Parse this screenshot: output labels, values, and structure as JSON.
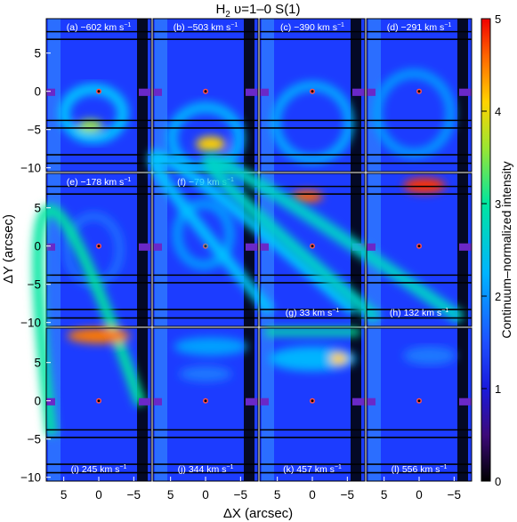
{
  "title_main": "H",
  "title_sub": "2",
  "title_rest": " υ=1–0 S(1)",
  "chart_data": {
    "type": "heatmap",
    "title": "H2 υ=1–0 S(1)",
    "xlabel": "ΔX (arcsec)",
    "ylabel": "ΔY (arcsec)",
    "xlim": [
      7.5,
      -7.5
    ],
    "ylim": [
      -10.5,
      9.5
    ],
    "xticks": [
      5,
      0,
      -5
    ],
    "yticks": [
      5,
      0,
      -5,
      -10
    ],
    "colorbar": {
      "label": "Continuum–normalized intensity",
      "range": [
        0,
        5
      ],
      "ticks": [
        0,
        1,
        2,
        3,
        4,
        5
      ]
    },
    "panels": [
      {
        "label": "(a) −602 km s",
        "velocity": -602
      },
      {
        "label": "(b) −503 km s",
        "velocity": -503
      },
      {
        "label": "(c) −390 km s",
        "velocity": -390
      },
      {
        "label": "(d) −291 km s",
        "velocity": -291
      },
      {
        "label": "(e) −178 km s",
        "velocity": -178
      },
      {
        "label": "(f) −79 km s",
        "velocity": -79
      },
      {
        "label": "(g) 33 km s",
        "velocity": 33
      },
      {
        "label": "(h) 132 km s",
        "velocity": 132
      },
      {
        "label": "(i) 245 km s",
        "velocity": 245
      },
      {
        "label": "(j) 344 km s",
        "velocity": 344
      },
      {
        "label": "(k) 457 km s",
        "velocity": 457
      },
      {
        "label": "(l) 556 km s",
        "velocity": 556
      }
    ]
  }
}
